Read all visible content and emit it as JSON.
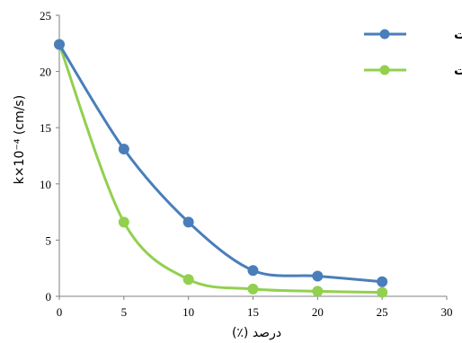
{
  "chart_data": {
    "type": "line",
    "title": "",
    "xlabel": "درصد (٪)",
    "ylabel": "k×10⁻⁴ (cm/s)",
    "xlim": [
      0,
      30
    ],
    "ylim": [
      0,
      25
    ],
    "x_ticks": [
      "0",
      "5",
      "10",
      "15",
      "20",
      "25",
      "30"
    ],
    "y_ticks": [
      "0",
      "5",
      "10",
      "15",
      "20",
      "25"
    ],
    "grid": false,
    "legend_position": "top-right",
    "x": [
      0,
      5,
      10,
      15,
      20,
      25
    ],
    "series": [
      {
        "name": "زئولیت",
        "color": "#4a7ebb",
        "values": [
          22.4,
          13.1,
          6.6,
          2.3,
          1.8,
          1.3
        ]
      },
      {
        "name": "سپیولیت",
        "color": "#92d050",
        "values": [
          22.4,
          6.6,
          1.5,
          0.65,
          0.45,
          0.35
        ]
      }
    ]
  }
}
